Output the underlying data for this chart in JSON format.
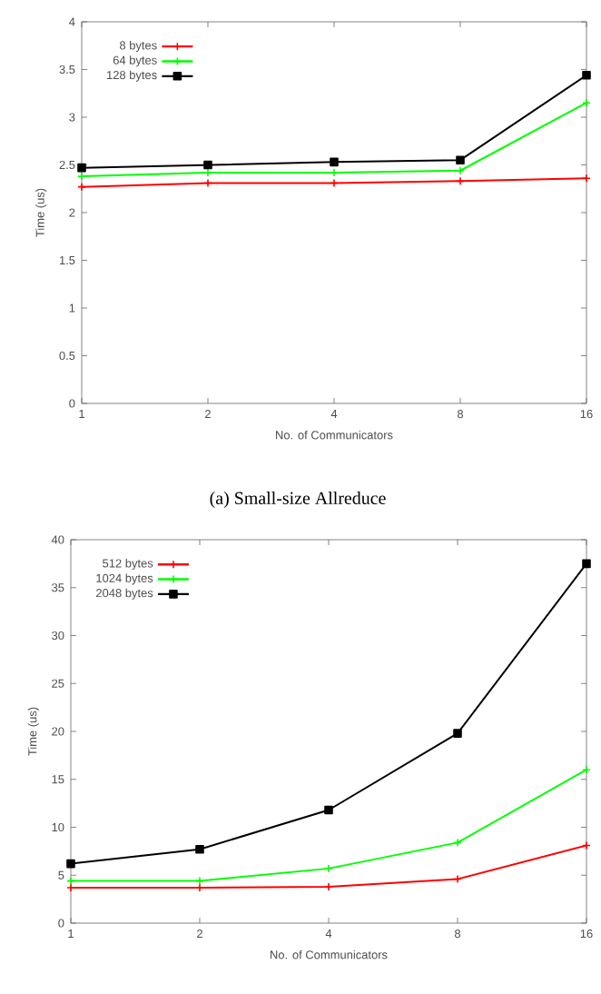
{
  "chart_data": [
    {
      "type": "line",
      "xlabel": "No. of Communicators",
      "ylabel": "Time (us)",
      "categories": [
        "1",
        "2",
        "4",
        "8",
        "16"
      ],
      "ylim": [
        0,
        4
      ],
      "yticks": [
        0,
        0.5,
        1,
        1.5,
        2,
        2.5,
        3,
        3.5,
        4
      ],
      "legend": "top left",
      "grid": false,
      "annotations": [
        "(a) Small-size Allreduce"
      ],
      "series": [
        {
          "name": "8 bytes",
          "color": "#ff0000",
          "marker": "cross",
          "values": [
            2.27,
            2.31,
            2.31,
            2.33,
            2.36
          ]
        },
        {
          "name": "64 bytes",
          "color": "#00ff00",
          "marker": "cross",
          "values": [
            2.38,
            2.42,
            2.42,
            2.44,
            3.15
          ]
        },
        {
          "name": "128 bytes",
          "color": "#000000",
          "marker": "square",
          "values": [
            2.47,
            2.5,
            2.53,
            2.55,
            3.44
          ]
        }
      ]
    },
    {
      "type": "line",
      "xlabel": "No. of Communicators",
      "ylabel": "Time (us)",
      "categories": [
        "1",
        "2",
        "4",
        "8",
        "16"
      ],
      "ylim": [
        0,
        40
      ],
      "yticks": [
        0,
        5,
        10,
        15,
        20,
        25,
        30,
        35,
        40
      ],
      "legend": "top left",
      "grid": false,
      "series": [
        {
          "name": "512 bytes",
          "color": "#ff0000",
          "marker": "cross",
          "values": [
            3.7,
            3.7,
            3.8,
            4.6,
            8.1
          ]
        },
        {
          "name": "1024 bytes",
          "color": "#00ff00",
          "marker": "cross",
          "values": [
            4.4,
            4.4,
            5.7,
            8.4,
            16.0
          ]
        },
        {
          "name": "2048 bytes",
          "color": "#000000",
          "marker": "square",
          "values": [
            6.2,
            7.7,
            11.8,
            19.8,
            37.5
          ]
        }
      ]
    }
  ]
}
